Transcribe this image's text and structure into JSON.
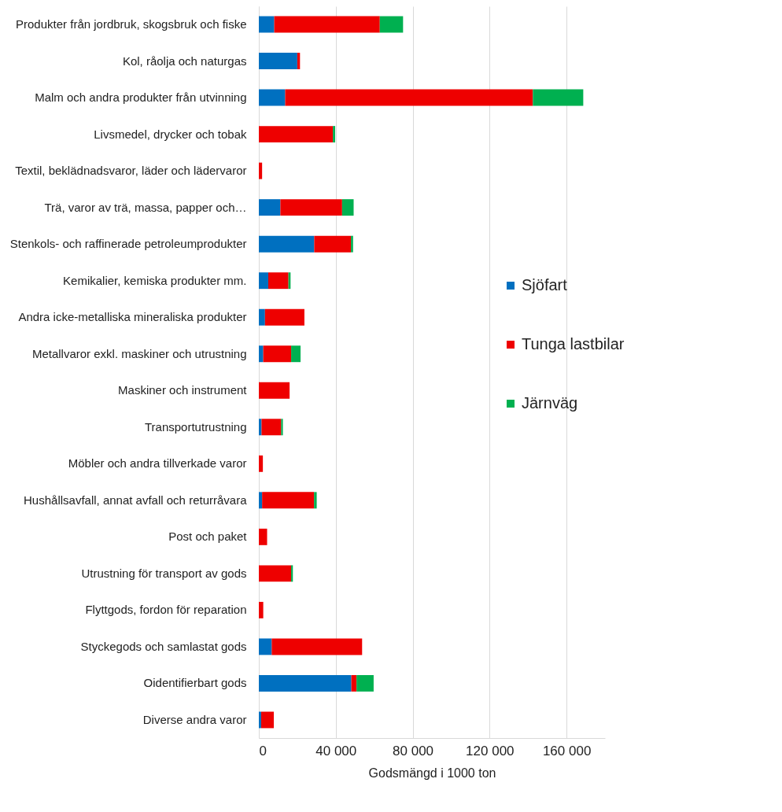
{
  "chart_data": {
    "type": "bar",
    "orientation": "horizontal",
    "stacked": true,
    "xlabel": "Godsmängd i 1000 ton",
    "categories": [
      "Produkter från jordbruk, skogsbruk och fiske",
      "Kol, råolja och naturgas",
      "Malm och andra produkter från utvinning",
      "Livsmedel, drycker och tobak",
      "Textil, beklädnadsvaror, läder och lädervaror",
      "Trä, varor av trä, massa, papper och…",
      "Stenkols- och raffinerade petroleumprodukter",
      "Kemikalier, kemiska produkter mm.",
      "Andra icke-metalliska mineraliska produkter",
      "Metallvaror exkl. maskiner och utrustning",
      "Maskiner och instrument",
      "Transportutrustning",
      "Möbler och andra tillverkade varor",
      "Hushållsavfall, annat avfall och returråvara",
      "Post och paket",
      "Utrustning för transport av gods",
      "Flyttgods, fordon för reparation",
      "Styckegods och samlastat gods",
      "Oidentifierbart gods",
      "Diverse andra varor"
    ],
    "series": [
      {
        "name": "Sjöfart",
        "color": "#0070c0",
        "values": [
          8000,
          20000,
          13700,
          0,
          0,
          11200,
          28800,
          4900,
          3200,
          2300,
          0,
          1400,
          0,
          1700,
          0,
          0,
          0,
          6700,
          48100,
          1200
        ]
      },
      {
        "name": "Tunga lastbilar",
        "color": "#ee0000",
        "values": [
          54900,
          1400,
          128800,
          38500,
          1700,
          32100,
          19100,
          10500,
          20500,
          14500,
          16000,
          10200,
          2100,
          27000,
          4300,
          16800,
          2300,
          47000,
          2700,
          6600
        ]
      },
      {
        "name": "Järnväg",
        "color": "#00b050",
        "values": [
          12100,
          0,
          26200,
          1200,
          0,
          6000,
          1100,
          1100,
          0,
          4900,
          0,
          900,
          0,
          1400,
          0,
          900,
          0,
          0,
          8900,
          0
        ]
      }
    ],
    "xlim": [
      0,
      180000
    ],
    "xticks": [
      0,
      {
        "value": 40000,
        "label": "40 000"
      },
      {
        "value": 80000,
        "label": "80 000"
      },
      {
        "value": 120000,
        "label": "120 000"
      },
      {
        "value": 160000,
        "label": "160 000"
      }
    ],
    "grid": "x",
    "legend": "right"
  }
}
